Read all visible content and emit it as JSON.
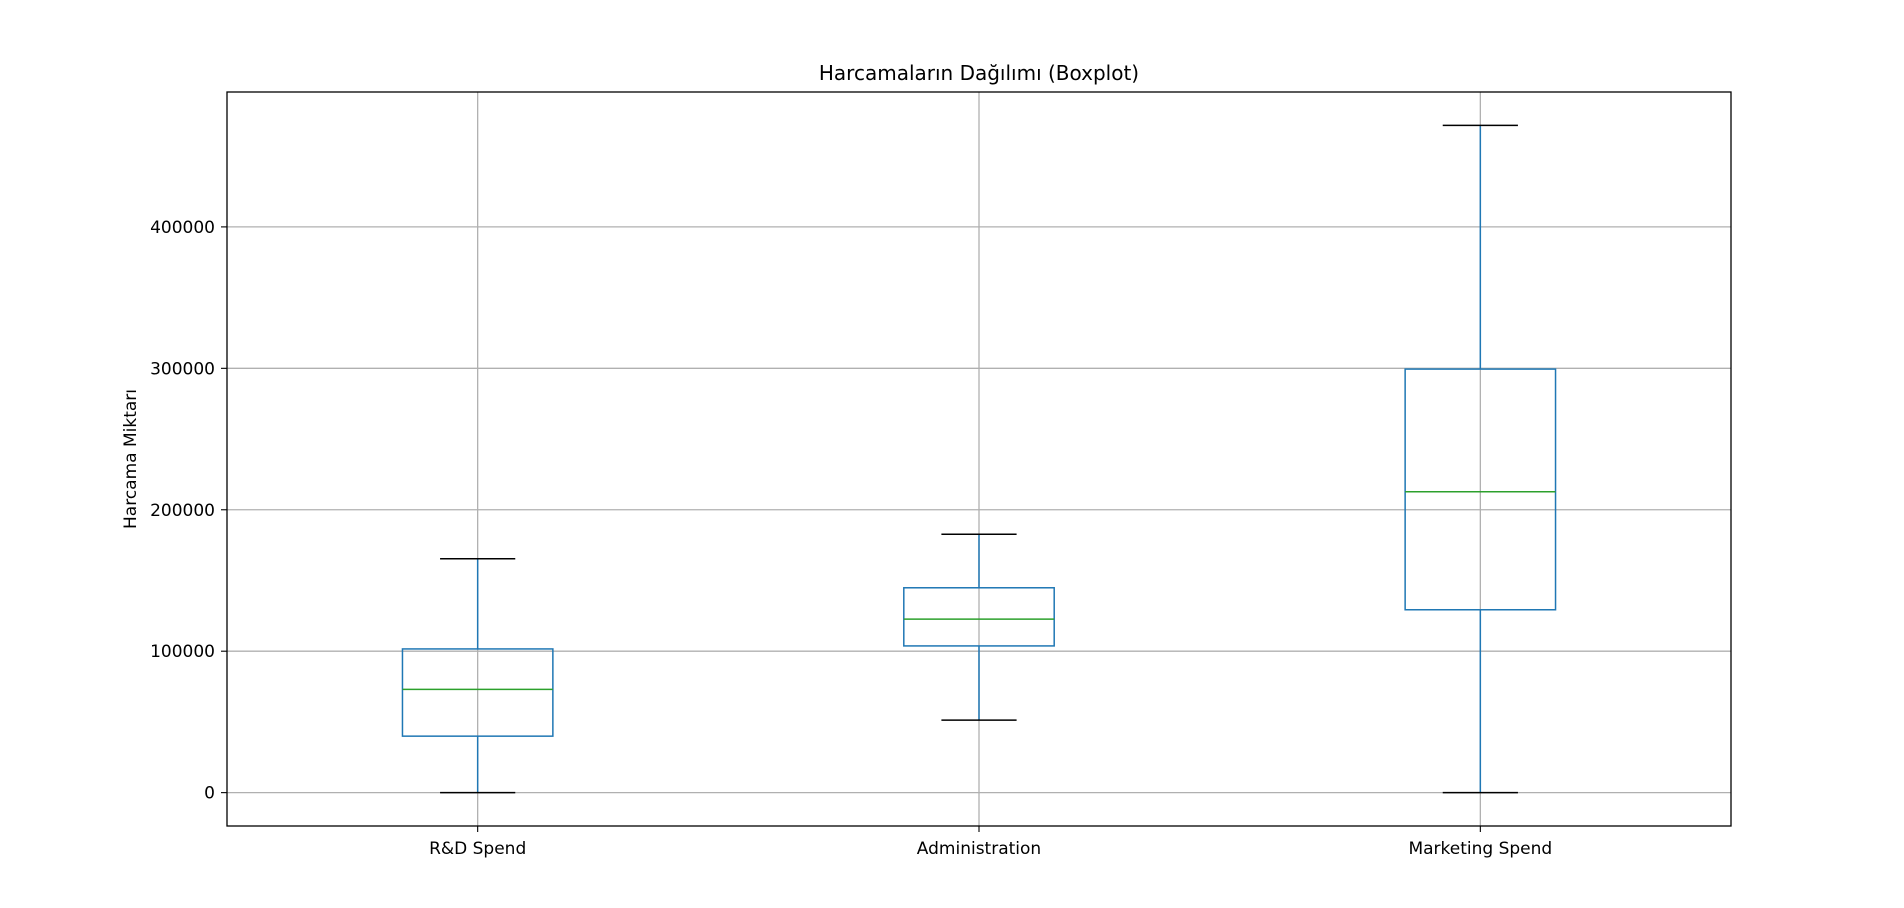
{
  "chart_data": {
    "type": "boxplot",
    "title": "Harcamaların Dağılımı (Boxplot)",
    "xlabel": "",
    "ylabel": "Harcama Miktarı",
    "categories": [
      "R&D Spend",
      "Administration",
      "Marketing Spend"
    ],
    "boxes": [
      {
        "category": "R&D Spend",
        "whisker_low": 0,
        "q1": 39936,
        "median": 73051,
        "q3": 101602,
        "whisker_high": 165349
      },
      {
        "category": "Administration",
        "whisker_low": 51283,
        "q1": 103731,
        "median": 122700,
        "q3": 144842,
        "whisker_high": 182646
      },
      {
        "category": "Marketing Spend",
        "whisker_low": 0,
        "q1": 129300,
        "median": 212716,
        "q3": 299469,
        "whisker_high": 471784
      }
    ],
    "yticks": [
      0,
      100000,
      200000,
      300000,
      400000
    ],
    "ytick_labels": [
      "0",
      "100000",
      "200000",
      "300000",
      "400000"
    ],
    "ylim": [
      -23589,
      495373
    ],
    "grid": true,
    "colors": {
      "box": "#1f77b4",
      "median": "#2ca02c",
      "caps": "#000000",
      "grid": "#b0b0b0",
      "axes": "#000000"
    }
  }
}
